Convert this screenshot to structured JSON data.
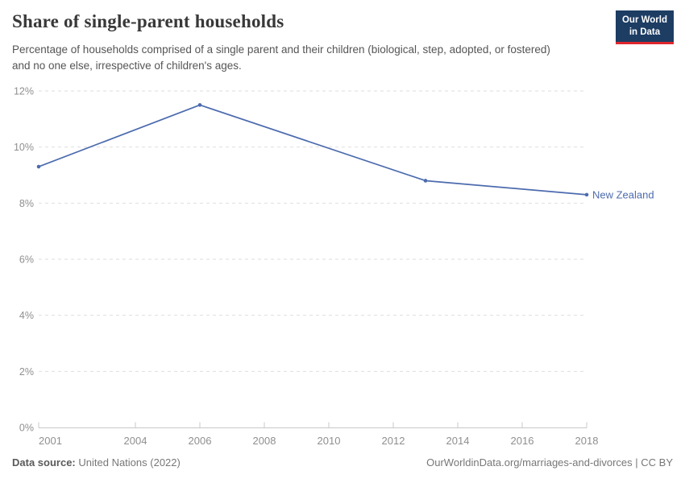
{
  "header": {
    "title": "Share of single-parent households",
    "subtitle": "Percentage of households comprised of a single parent and their children (biological, step, adopted, or fostered) and no one else, irrespective of children's ages."
  },
  "logo": {
    "line1": "Our World",
    "line2": "in Data",
    "bg_color": "#1d3d63",
    "accent_color": "#e0262d"
  },
  "chart_data": {
    "type": "line",
    "title": "Share of single-parent households",
    "series": [
      {
        "name": "New Zealand",
        "color": "#4C6BAE",
        "x": [
          2001,
          2006,
          2013,
          2018
        ],
        "values": [
          9.3,
          11.5,
          8.8,
          8.3
        ]
      }
    ],
    "xlabel": "",
    "ylabel": "",
    "xlim": [
      2001,
      2018
    ],
    "ylim": [
      0,
      12
    ],
    "x_ticks": [
      2001,
      2004,
      2006,
      2008,
      2010,
      2012,
      2014,
      2016,
      2018
    ],
    "y_ticks": [
      0,
      2,
      4,
      6,
      8,
      10,
      12
    ],
    "y_tick_suffix": "%",
    "grid": "dashed-horizontal",
    "legend_position": "end-of-line"
  },
  "footer": {
    "source_label": "Data source:",
    "source_value": "United Nations (2022)",
    "link": "OurWorldinData.org/marriages-and-divorces | CC BY"
  }
}
